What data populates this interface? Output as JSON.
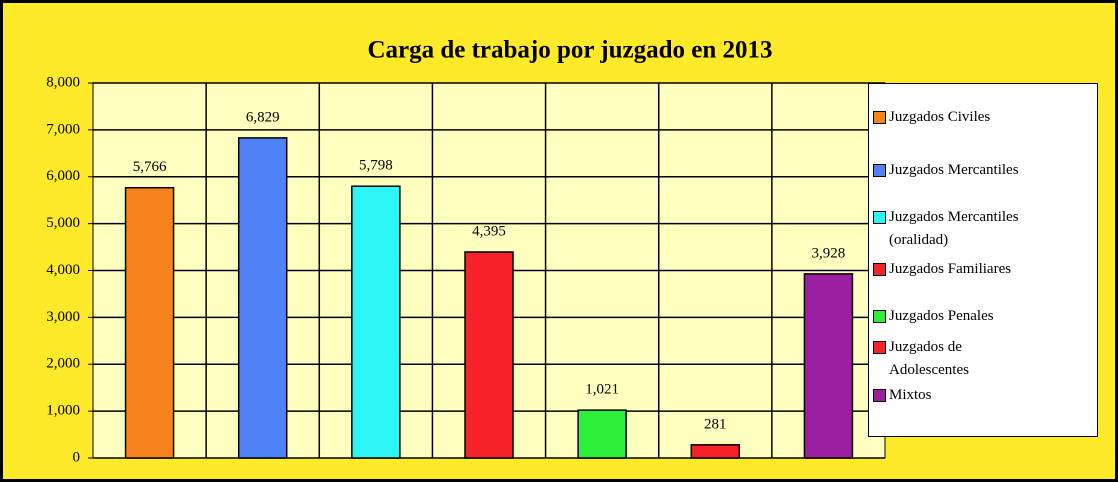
{
  "chart_data": {
    "type": "bar",
    "title": "Carga de trabajo por juzgado en 2013",
    "categories": [
      "Juzgados Civiles",
      "Juzgados Mercantiles",
      "Juzgados Mercantiles (oralidad)",
      "Juzgados Familiares",
      "Juzgados Penales",
      "Juzgados de Adolescentes",
      "Mixtos"
    ],
    "values": [
      5766,
      6829,
      5798,
      4395,
      1021,
      281,
      3928
    ],
    "value_labels": [
      "5,766",
      "6,829",
      "5,798",
      "4,395",
      "1,021",
      "281",
      "3,928"
    ],
    "colors": [
      "#f7821e",
      "#4f81f7",
      "#2ef5f5",
      "#f5222a",
      "#2ef03a",
      "#f5222a",
      "#9b1fa0"
    ],
    "ylim": [
      0,
      8000
    ],
    "yticks": [
      0,
      {
        "value": 1000,
        "label": "1,000"
      },
      {
        "value": 2000,
        "label": "2,000"
      },
      {
        "value": 3000,
        "label": "3,000"
      },
      {
        "value": 4000,
        "label": "4,000"
      },
      {
        "value": 5000,
        "label": "5,000"
      },
      {
        "value": 6000,
        "label": "6,000"
      },
      {
        "value": 7000,
        "label": "7,000"
      },
      {
        "value": 8000,
        "label": "8,000"
      }
    ],
    "grid": true,
    "legend": "right"
  }
}
